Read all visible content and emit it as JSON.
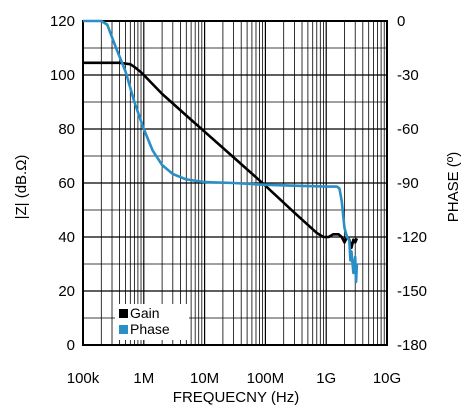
{
  "chart_data": {
    "type": "line",
    "x_scale": "log",
    "xlim": [
      100000,
      10000000000
    ],
    "x_ticks": [
      {
        "value": 100000,
        "label": "100k"
      },
      {
        "value": 1000000,
        "label": "1M"
      },
      {
        "value": 10000000,
        "label": "10M"
      },
      {
        "value": 100000000,
        "label": "100M"
      },
      {
        "value": 1000000000,
        "label": "1G"
      },
      {
        "value": 10000000000,
        "label": "10G"
      }
    ],
    "xlabel": "FREQUECNY (Hz)",
    "ylabel_left": "|Z| (dB.Ω)",
    "ylim_left": [
      0,
      120
    ],
    "y_ticks_left": [
      0,
      20,
      40,
      60,
      80,
      100,
      120
    ],
    "ylabel_right": "PHASE (º)",
    "ylim_right": [
      -180,
      0
    ],
    "y_ticks_right": [
      0,
      -30,
      -60,
      -90,
      -120,
      -150,
      -180
    ],
    "grid": true,
    "legend_position": "bottom-left",
    "series": [
      {
        "name": "Gain",
        "axis": "left",
        "color": "#000000",
        "points": [
          [
            100000,
            104.5
          ],
          [
            200000,
            104.5
          ],
          [
            400000,
            104.5
          ],
          [
            600000,
            104
          ],
          [
            700000,
            103
          ],
          [
            900000,
            101
          ],
          [
            1000000,
            100
          ],
          [
            2000000,
            93
          ],
          [
            5000000,
            85
          ],
          [
            10000000,
            79
          ],
          [
            30000000,
            69.5
          ],
          [
            100000000,
            59
          ],
          [
            300000000,
            49
          ],
          [
            700000000,
            41.5
          ],
          [
            900000000,
            40
          ],
          [
            1100000000,
            40
          ],
          [
            1300000000,
            41
          ],
          [
            1600000000,
            41
          ],
          [
            1800000000,
            40
          ],
          [
            2000000000,
            38
          ],
          [
            2200000000,
            40
          ],
          [
            2400000000,
            39
          ],
          [
            2600000000,
            36
          ],
          [
            2800000000,
            39
          ],
          [
            3000000000,
            38
          ],
          [
            3200000000,
            39.5
          ]
        ]
      },
      {
        "name": "Phase",
        "axis": "right",
        "color": "#2a8fc7",
        "points": [
          [
            100000,
            0
          ],
          [
            200000,
            0
          ],
          [
            250000,
            -2
          ],
          [
            350000,
            -15
          ],
          [
            500000,
            -28
          ],
          [
            700000,
            -45
          ],
          [
            1000000,
            -60
          ],
          [
            1400000,
            -72
          ],
          [
            2000000,
            -80
          ],
          [
            3000000,
            -85
          ],
          [
            5000000,
            -88
          ],
          [
            10000000,
            -89.5
          ],
          [
            30000000,
            -90
          ],
          [
            100000000,
            -91
          ],
          [
            300000000,
            -91.5
          ],
          [
            1000000000,
            -92
          ],
          [
            1500000000,
            -92
          ],
          [
            1650000000,
            -93
          ],
          [
            1800000000,
            -100
          ],
          [
            2000000000,
            -115
          ],
          [
            2200000000,
            -120
          ],
          [
            2400000000,
            -122
          ],
          [
            2500000000,
            -133
          ],
          [
            2600000000,
            -128
          ],
          [
            2800000000,
            -140
          ],
          [
            3000000000,
            -131
          ],
          [
            3100000000,
            -145
          ],
          [
            3200000000,
            -135
          ]
        ]
      }
    ]
  }
}
